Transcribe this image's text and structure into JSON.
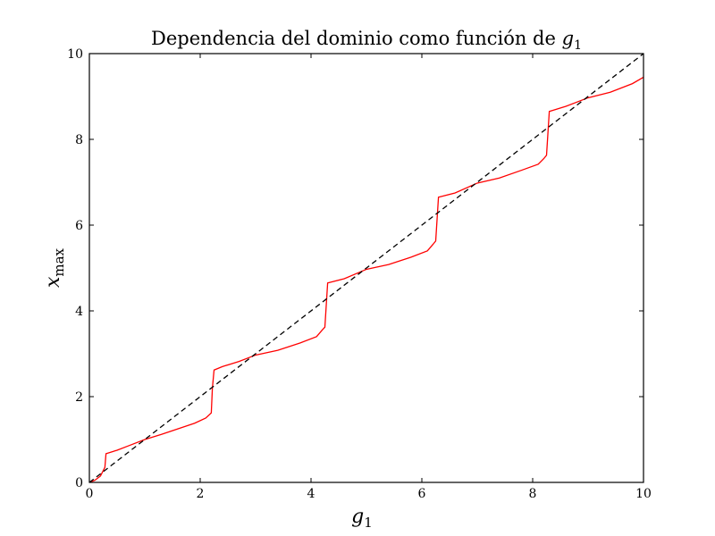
{
  "chart_data": {
    "type": "line",
    "title": "Dependencia del dominio como función de ",
    "title_math": "g",
    "title_math_sub": "1",
    "xlabel": "g",
    "xlabel_sub": "1",
    "ylabel": "x",
    "ylabel_sub": "max",
    "xlim": [
      0,
      10
    ],
    "ylim": [
      0,
      10
    ],
    "xticks": [
      0,
      2,
      4,
      6,
      8,
      10
    ],
    "yticks": [
      0,
      2,
      4,
      6,
      8,
      10
    ],
    "xtick_labels": [
      "0",
      "2",
      "4",
      "6",
      "8",
      "10"
    ],
    "ytick_labels": [
      "0",
      "2",
      "4",
      "6",
      "8",
      "10"
    ],
    "grid": false,
    "series": [
      {
        "color": "#ff0000",
        "style": "solid",
        "x": [
          0,
          0.1,
          0.2,
          0.28,
          0.3,
          0.5,
          0.7,
          1.0,
          1.3,
          1.6,
          1.9,
          2.1,
          2.2,
          2.22,
          2.25,
          2.4,
          2.7,
          3.0,
          3.4,
          3.8,
          4.1,
          4.2,
          4.25,
          4.3,
          4.6,
          5.0,
          5.4,
          5.8,
          6.1,
          6.2,
          6.25,
          6.3,
          6.6,
          7.0,
          7.4,
          7.8,
          8.1,
          8.2,
          8.25,
          8.3,
          8.6,
          9.0,
          9.4,
          9.8,
          10.0
        ],
        "y": [
          0,
          0.05,
          0.15,
          0.35,
          0.67,
          0.75,
          0.85,
          1.0,
          1.12,
          1.25,
          1.38,
          1.5,
          1.62,
          2.2,
          2.62,
          2.7,
          2.82,
          2.97,
          3.08,
          3.25,
          3.4,
          3.55,
          3.62,
          4.65,
          4.75,
          4.97,
          5.08,
          5.25,
          5.4,
          5.55,
          5.63,
          6.65,
          6.75,
          6.98,
          7.1,
          7.28,
          7.42,
          7.55,
          7.63,
          8.65,
          8.77,
          8.97,
          9.1,
          9.3,
          9.45
        ]
      },
      {
        "color": "#000000",
        "style": "dashed",
        "x": [
          0,
          10
        ],
        "y": [
          0,
          10
        ]
      }
    ]
  }
}
